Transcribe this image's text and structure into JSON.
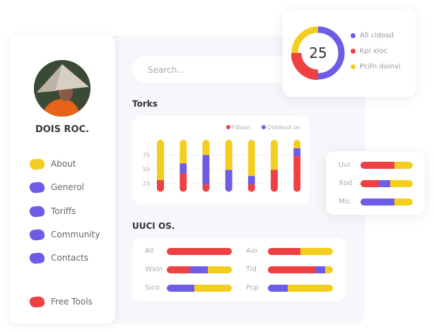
{
  "colors": {
    "red": "#ef4043",
    "purple": "#6c5ce7",
    "yellow": "#f4ce1e"
  },
  "sidebar": {
    "user_name": "DOIS ROC.",
    "items": [
      {
        "label": "About",
        "color": "#f4ce1e"
      },
      {
        "label": "Generol",
        "color": "#6c5ce7"
      },
      {
        "label": "Toriffs",
        "color": "#6c5ce7"
      },
      {
        "label": "Community",
        "color": "#6c5ce7"
      },
      {
        "label": "Contacts",
        "color": "#6c5ce7"
      },
      {
        "label": "Free Tools",
        "color": "#ef4043"
      }
    ]
  },
  "search": {
    "placeholder": "Search..."
  },
  "donut": {
    "center_value": "25",
    "legend": [
      {
        "label": "All cidosd",
        "color": "#6c5ce7",
        "share": 50
      },
      {
        "label": "Kpi xioc",
        "color": "#ef4043",
        "share": 25
      },
      {
        "label": "Pcifn doinvi",
        "color": "#f4ce1e",
        "share": 25
      }
    ]
  },
  "torks": {
    "title": "Torks"
  },
  "chart_data": {
    "type": "bar",
    "stacked": true,
    "yticks": [
      "75",
      "50",
      "25"
    ],
    "ylim": [
      0,
      100
    ],
    "base": 10,
    "grid": true,
    "legend_placement": "top-right",
    "series": [
      {
        "name": "Fdison",
        "color": "#ef4043",
        "values": [
          21,
          33,
          13,
          0,
          13,
          39,
          63
        ]
      },
      {
        "name": "Oidnksdi os",
        "color": "#6c5ce7",
        "values": [
          0,
          17,
          52,
          39,
          15,
          0,
          14
        ]
      },
      {
        "color": "#f4ce1e",
        "values": [
          71,
          42,
          27,
          53,
          64,
          53,
          15
        ]
      }
    ]
  },
  "right_bars": [
    {
      "label": "Uui",
      "segments": [
        [
          "#ef4043",
          0.65
        ],
        [
          "#f4ce1e",
          0.35
        ]
      ]
    },
    {
      "label": "Xod",
      "segments": [
        [
          "#ef4043",
          0.35
        ],
        [
          "#6c5ce7",
          0.22
        ],
        [
          "#f4ce1e",
          0.43
        ]
      ]
    },
    {
      "label": "Mic",
      "segments": [
        [
          "#6c5ce7",
          0.65
        ],
        [
          "#f4ce1e",
          0.35
        ]
      ]
    }
  ],
  "uuci": {
    "title": "UUCI OS.",
    "rows": [
      {
        "label": "All",
        "segments": [
          [
            "#ef4043",
            1.0
          ]
        ]
      },
      {
        "label": "Aio",
        "segments": [
          [
            "#ef4043",
            0.5
          ],
          [
            "#f4ce1e",
            0.5
          ]
        ]
      },
      {
        "label": "Wxin",
        "segments": [
          [
            "#ef4043",
            0.36
          ],
          [
            "#6c5ce7",
            0.27
          ],
          [
            "#f4ce1e",
            0.37
          ]
        ]
      },
      {
        "label": "Tid",
        "segments": [
          [
            "#ef4043",
            0.73
          ],
          [
            "#6c5ce7",
            0.15
          ],
          [
            "#f4ce1e",
            0.12
          ]
        ]
      },
      {
        "label": "Sico",
        "segments": [
          [
            "#6c5ce7",
            0.42
          ],
          [
            "#f4ce1e",
            0.58
          ]
        ]
      },
      {
        "label": "Pcp",
        "segments": [
          [
            "#6c5ce7",
            0.3
          ],
          [
            "#f4ce1e",
            0.7
          ]
        ]
      }
    ]
  }
}
